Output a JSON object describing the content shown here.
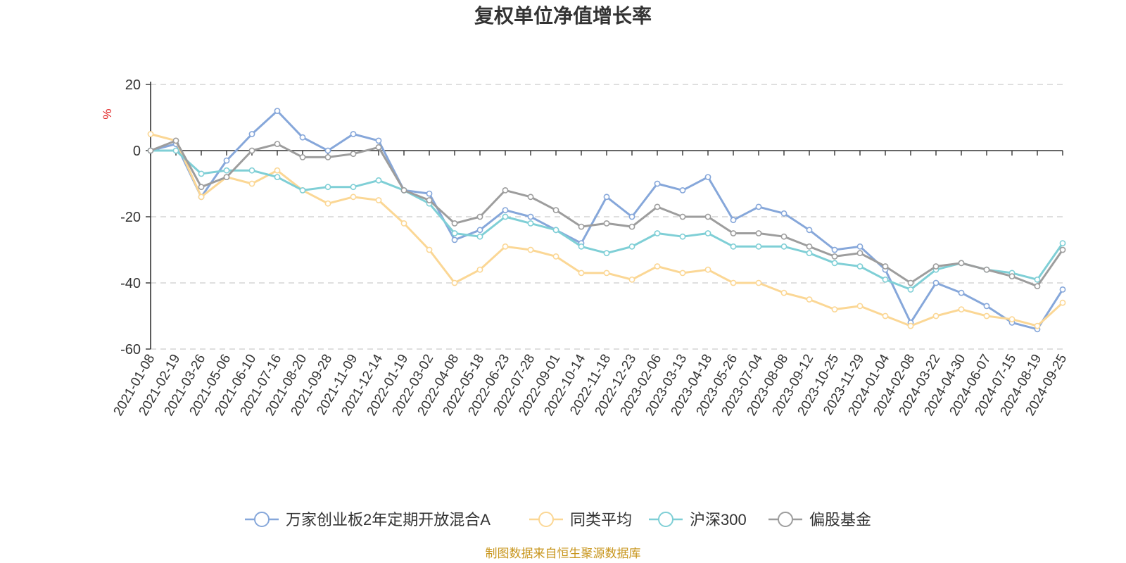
{
  "chart_data": {
    "type": "line",
    "title": "复权单位净值增长率",
    "ylabel": "%",
    "ylim": [
      -60,
      20
    ],
    "yticks": [
      20,
      0,
      -20,
      -40,
      -60
    ],
    "grid": true,
    "legend_position": "bottom-center",
    "x": [
      "2021-01-08",
      "2021-02-19",
      "2021-03-26",
      "2021-05-06",
      "2021-06-10",
      "2021-07-16",
      "2021-08-20",
      "2021-09-28",
      "2021-11-09",
      "2021-12-14",
      "2022-01-19",
      "2022-03-02",
      "2022-04-08",
      "2022-05-18",
      "2022-06-23",
      "2022-07-28",
      "2022-09-01",
      "2022-10-14",
      "2022-11-18",
      "2022-12-23",
      "2023-02-06",
      "2023-03-13",
      "2023-04-18",
      "2023-05-26",
      "2023-07-04",
      "2023-08-08",
      "2023-09-12",
      "2023-10-25",
      "2023-11-29",
      "2024-01-04",
      "2024-02-08",
      "2024-03-22",
      "2024-04-30",
      "2024-06-07",
      "2024-07-15",
      "2024-08-19",
      "2024-09-25"
    ],
    "series": [
      {
        "name": "万家创业板2年定期开放混合A",
        "color": "#86a7da",
        "values": [
          0,
          2,
          -14,
          -3,
          5,
          12,
          4,
          0,
          5,
          3,
          -12,
          -13,
          -27,
          -24,
          -18,
          -20,
          -24,
          -28,
          -14,
          -20,
          -10,
          -12,
          -8,
          -21,
          -17,
          -19,
          -24,
          -30,
          -29,
          -36,
          -52,
          -40,
          -43,
          -47,
          -52,
          -54,
          -42
        ]
      },
      {
        "name": "同类平均",
        "color": "#fbd795",
        "values": [
          5,
          3,
          -14,
          -8,
          -10,
          -6,
          -12,
          -16,
          -14,
          -15,
          -22,
          -30,
          -40,
          -36,
          -29,
          -30,
          -32,
          -37,
          -37,
          -39,
          -35,
          -37,
          -36,
          -40,
          -40,
          -43,
          -45,
          -48,
          -47,
          -50,
          -53,
          -50,
          -48,
          -50,
          -51,
          -53,
          -46
        ]
      },
      {
        "name": "沪深300",
        "color": "#7fcfd6",
        "values": [
          0,
          0,
          -7,
          -6,
          -6,
          -8,
          -12,
          -11,
          -11,
          -9,
          -12,
          -16,
          -25,
          -26,
          -20,
          -22,
          -24,
          -29,
          -31,
          -29,
          -25,
          -26,
          -25,
          -29,
          -29,
          -29,
          -31,
          -34,
          -35,
          -39,
          -42,
          -36,
          -34,
          -36,
          -37,
          -39,
          -28
        ]
      },
      {
        "name": "偏股基金",
        "color": "#9d9d9d",
        "values": [
          0,
          3,
          -11,
          -8,
          0,
          2,
          -2,
          -2,
          -1,
          1,
          -12,
          -15,
          -22,
          -20,
          -12,
          -14,
          -18,
          -23,
          -22,
          -23,
          -17,
          -20,
          -20,
          -25,
          -25,
          -26,
          -29,
          -32,
          -31,
          -35,
          -40,
          -35,
          -34,
          -36,
          -38,
          -41,
          -30
        ]
      }
    ]
  },
  "source_note": "制图数据来自恒生聚源数据库"
}
